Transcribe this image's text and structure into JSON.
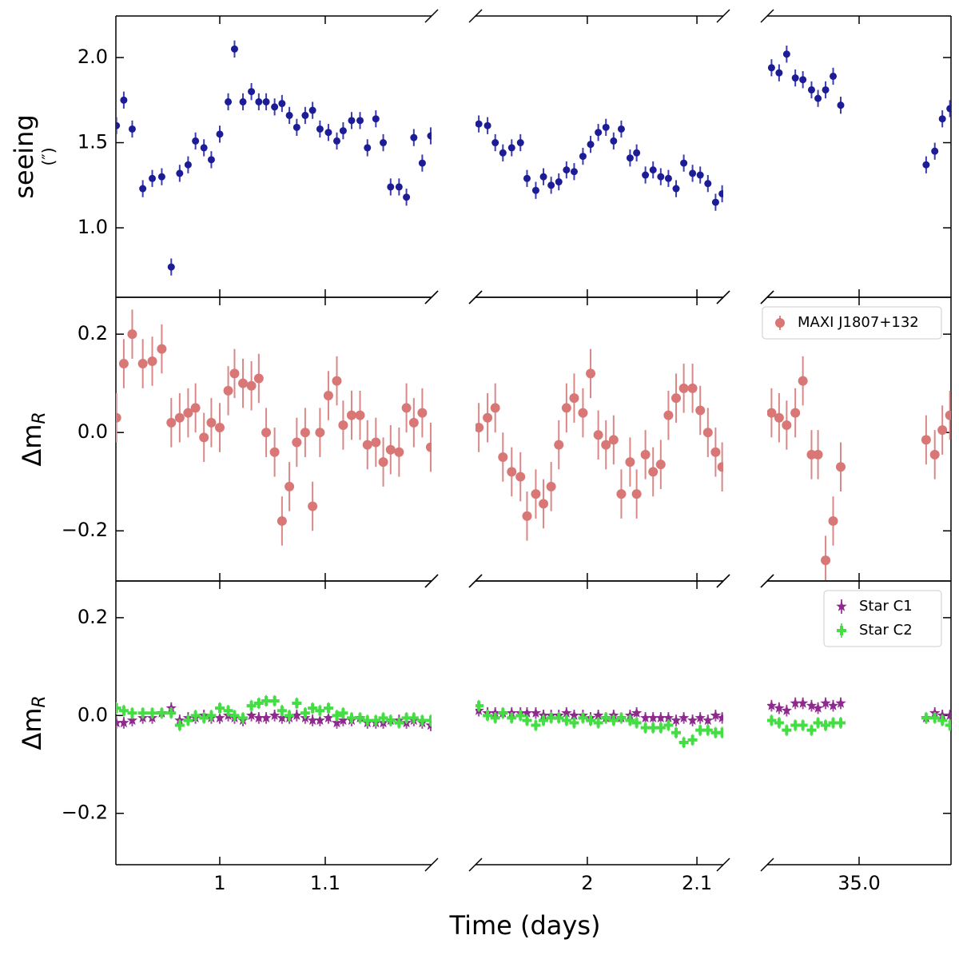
{
  "chart_data": {
    "type": "scatter",
    "xlabel": "Time (days)",
    "x": [
      0.902,
      0.909,
      0.917,
      0.927,
      0.936,
      0.945,
      0.954,
      0.962,
      0.97,
      0.977,
      0.985,
      0.992,
      1.0,
      1.008,
      1.014,
      1.022,
      1.03,
      1.037,
      1.044,
      1.052,
      1.059,
      1.066,
      1.073,
      1.081,
      1.088,
      1.095,
      1.103,
      1.111,
      1.117,
      1.125,
      1.133,
      1.14,
      1.148,
      1.155,
      1.162,
      1.17,
      1.177,
      1.184,
      1.192,
      1.2,
      1.901,
      1.909,
      1.916,
      1.923,
      1.931,
      1.939,
      1.945,
      1.953,
      1.96,
      1.967,
      1.974,
      1.981,
      1.988,
      1.996,
      2.003,
      2.01,
      2.017,
      2.024,
      2.031,
      2.039,
      2.045,
      2.053,
      2.06,
      2.067,
      2.074,
      2.081,
      2.088,
      2.096,
      2.103,
      2.11,
      2.117,
      2.123,
      34.919,
      34.926,
      34.933,
      34.941,
      34.948,
      34.956,
      34.962,
      34.969,
      34.976,
      34.983,
      35.062,
      35.07,
      35.077,
      35.084
    ],
    "xsegments": [
      {
        "xlim": [
          0.9015,
          1.2008
        ],
        "xticks": [
          1.0,
          1.1
        ]
      },
      {
        "xlim": [
          1.898,
          2.124
        ],
        "xticks": [
          2.0,
          2.1
        ]
      },
      {
        "xlim": [
          34.915,
          35.085
        ],
        "xticks": [
          {
            "value": 35,
            "label": "35.0"
          }
        ]
      }
    ],
    "rows": [
      {
        "ylabel": "seeing",
        "ylabel_unit": "(″)",
        "ylim": [
          0.592,
          2.244
        ],
        "yticks": [
          {
            "value": 1,
            "label": "1.0"
          },
          1.5,
          {
            "value": 2,
            "label": "2.0"
          }
        ],
        "series": [
          {
            "color": "#1c1c96",
            "error_color": "#3c3cb0",
            "marker": "circle",
            "error": 0.05,
            "values": [
              1.6,
              1.75,
              1.58,
              1.23,
              1.29,
              1.3,
              0.77,
              1.32,
              1.37,
              1.51,
              1.47,
              1.4,
              1.55,
              1.74,
              2.05,
              1.74,
              1.8,
              1.74,
              1.74,
              1.71,
              1.73,
              1.66,
              1.59,
              1.66,
              1.69,
              1.58,
              1.56,
              1.51,
              1.57,
              1.63,
              1.63,
              1.47,
              1.64,
              1.5,
              1.24,
              1.24,
              1.18,
              1.53,
              1.38,
              1.54,
              1.61,
              1.6,
              1.5,
              1.44,
              1.47,
              1.5,
              1.29,
              1.22,
              1.3,
              1.25,
              1.27,
              1.34,
              1.33,
              1.42,
              1.49,
              1.56,
              1.59,
              1.51,
              1.58,
              1.41,
              1.44,
              1.31,
              1.34,
              1.3,
              1.29,
              1.23,
              1.38,
              1.32,
              1.31,
              1.26,
              1.15,
              1.2,
              1.94,
              1.91,
              2.02,
              1.88,
              1.87,
              1.81,
              1.76,
              1.81,
              1.89,
              1.72,
              1.37,
              1.45,
              1.64,
              1.7
            ]
          }
        ]
      },
      {
        "ylabel": "Δm",
        "ylabel_sub": "R",
        "ylim": [
          -0.302,
          0.275
        ],
        "yticks": [
          {
            "value": -0.2,
            "label": "−0.2"
          },
          {
            "value": 0,
            "label": "0.0"
          },
          0.2
        ],
        "legend": "upper right",
        "series": [
          {
            "name": "MAXI J1807+132",
            "color": "#d97777",
            "error_color": "#d98888",
            "marker": "circle",
            "error": 0.05,
            "values": [
              0.03,
              0.14,
              0.2,
              0.14,
              0.145,
              0.17,
              0.02,
              0.03,
              0.04,
              0.05,
              -0.01,
              0.02,
              0.01,
              0.085,
              0.12,
              0.1,
              0.095,
              0.11,
              0.0,
              -0.04,
              -0.18,
              -0.11,
              -0.02,
              0.0,
              -0.15,
              0.0,
              0.075,
              0.105,
              0.015,
              0.035,
              0.035,
              -0.025,
              -0.02,
              -0.06,
              -0.035,
              -0.04,
              0.05,
              0.02,
              0.04,
              -0.03,
              0.01,
              0.03,
              0.05,
              -0.05,
              -0.08,
              -0.09,
              -0.17,
              -0.125,
              -0.145,
              -0.11,
              -0.025,
              0.05,
              0.07,
              0.04,
              0.12,
              -0.005,
              -0.025,
              -0.015,
              -0.125,
              -0.06,
              -0.125,
              -0.045,
              -0.08,
              -0.065,
              0.035,
              0.07,
              0.09,
              0.09,
              0.045,
              0.0,
              -0.04,
              -0.07,
              0.04,
              0.03,
              0.015,
              0.04,
              0.105,
              -0.045,
              -0.045,
              -0.26,
              -0.18,
              -0.07,
              -0.015,
              -0.045,
              0.005,
              0.035
            ]
          }
        ]
      },
      {
        "ylabel": "Δm",
        "ylabel_sub": "R",
        "ylim": [
          -0.305,
          0.275
        ],
        "yticks": [
          {
            "value": -0.2,
            "label": "−0.2"
          },
          {
            "value": 0,
            "label": "0.0"
          },
          0.2
        ],
        "legend": "upper right",
        "series": [
          {
            "name": "Star C1",
            "color": "#8e2a8e",
            "error_color": "#a04aa0",
            "marker": "star",
            "error": 0.012,
            "values": [
              -0.015,
              -0.015,
              -0.01,
              -0.005,
              -0.005,
              0.005,
              0.015,
              -0.01,
              -0.005,
              -0.005,
              0,
              -0.005,
              -0.005,
              0,
              -0.005,
              -0.01,
              0,
              -0.005,
              -0.005,
              0,
              -0.005,
              -0.005,
              0,
              -0.005,
              -0.01,
              -0.01,
              -0.005,
              -0.015,
              -0.01,
              -0.01,
              -0.005,
              -0.015,
              -0.015,
              -0.015,
              -0.01,
              -0.01,
              -0.015,
              -0.01,
              -0.015,
              -0.02,
              0.01,
              0.005,
              0.005,
              0.005,
              0.005,
              0.005,
              0.005,
              0.005,
              0,
              0,
              0,
              0.005,
              0,
              0,
              -0.005,
              0,
              -0.005,
              0,
              -0.005,
              0,
              0.005,
              -0.005,
              -0.005,
              -0.005,
              -0.005,
              -0.01,
              -0.005,
              -0.01,
              -0.005,
              -0.01,
              0,
              -0.005,
              0.02,
              0.015,
              0.01,
              0.025,
              0.025,
              0.02,
              0.015,
              0.025,
              0.02,
              0.025,
              -0.005,
              0.005,
              0,
              0
            ]
          },
          {
            "name": "Star C2",
            "color": "#44dd44",
            "error_color": "#66e066",
            "marker": "plus",
            "error": 0.012,
            "values": [
              0.015,
              0.01,
              0.005,
              0.005,
              0.005,
              0.005,
              0.005,
              -0.02,
              -0.01,
              0,
              -0.005,
              0,
              0.015,
              0.01,
              0,
              -0.005,
              0.02,
              0.025,
              0.03,
              0.03,
              0.01,
              0,
              0.025,
              0.005,
              0.015,
              0.01,
              0.015,
              0,
              0.005,
              -0.005,
              -0.005,
              -0.01,
              -0.01,
              -0.005,
              -0.01,
              -0.015,
              -0.005,
              -0.005,
              -0.01,
              -0.01,
              0.02,
              0,
              -0.005,
              0.005,
              -0.005,
              0,
              -0.01,
              -0.02,
              -0.01,
              -0.005,
              -0.005,
              -0.01,
              -0.015,
              -0.005,
              -0.01,
              -0.015,
              -0.005,
              -0.01,
              -0.005,
              -0.01,
              -0.015,
              -0.025,
              -0.025,
              -0.025,
              -0.02,
              -0.035,
              -0.055,
              -0.05,
              -0.03,
              -0.03,
              -0.035,
              -0.035,
              -0.01,
              -0.015,
              -0.03,
              -0.02,
              -0.02,
              -0.03,
              -0.015,
              -0.02,
              -0.015,
              -0.015,
              -0.005,
              -0.005,
              -0.01,
              -0.02
            ]
          }
        ]
      }
    ]
  }
}
